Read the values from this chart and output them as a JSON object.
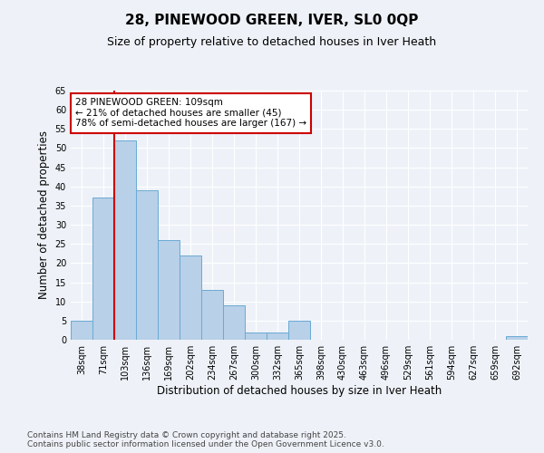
{
  "title1": "28, PINEWOOD GREEN, IVER, SL0 0QP",
  "title2": "Size of property relative to detached houses in Iver Heath",
  "xlabel": "Distribution of detached houses by size in Iver Heath",
  "ylabel": "Number of detached properties",
  "categories": [
    "38sqm",
    "71sqm",
    "103sqm",
    "136sqm",
    "169sqm",
    "202sqm",
    "234sqm",
    "267sqm",
    "300sqm",
    "332sqm",
    "365sqm",
    "398sqm",
    "430sqm",
    "463sqm",
    "496sqm",
    "529sqm",
    "561sqm",
    "594sqm",
    "627sqm",
    "659sqm",
    "692sqm"
  ],
  "values": [
    5,
    37,
    52,
    39,
    26,
    22,
    13,
    9,
    2,
    2,
    5,
    0,
    0,
    0,
    0,
    0,
    0,
    0,
    0,
    0,
    1
  ],
  "bar_color": "#b8d0e8",
  "bar_edge_color": "#6aaad4",
  "vline_index": 2,
  "annotation_line1": "28 PINEWOOD GREEN: 109sqm",
  "annotation_line2": "← 21% of detached houses are smaller (45)",
  "annotation_line3": "78% of semi-detached houses are larger (167) →",
  "annotation_box_facecolor": "#ffffff",
  "annotation_box_edgecolor": "#cc0000",
  "vline_color": "#cc0000",
  "ylim": [
    0,
    65
  ],
  "yticks": [
    0,
    5,
    10,
    15,
    20,
    25,
    30,
    35,
    40,
    45,
    50,
    55,
    60,
    65
  ],
  "bg_color": "#eef2f8",
  "grid_color": "#ffffff",
  "footer_line1": "Contains HM Land Registry data © Crown copyright and database right 2025.",
  "footer_line2": "Contains public sector information licensed under the Open Government Licence v3.0.",
  "title_fontsize": 11,
  "subtitle_fontsize": 9,
  "tick_fontsize": 7,
  "label_fontsize": 8.5,
  "annotation_fontsize": 7.5,
  "footer_fontsize": 6.5
}
